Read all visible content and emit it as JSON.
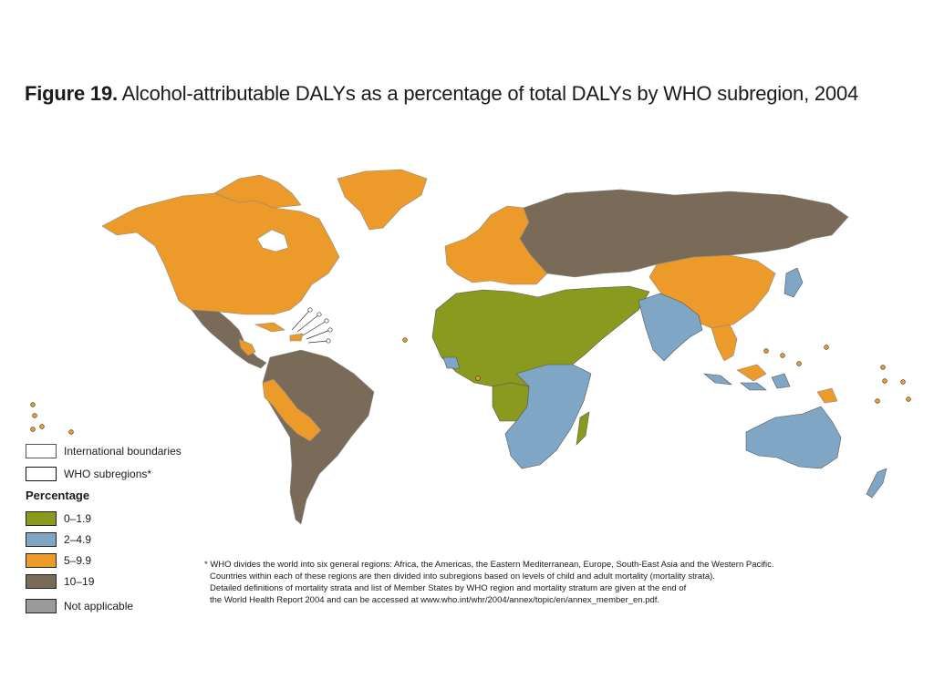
{
  "title": {
    "figure_label": "Figure 19.",
    "text": "Alcohol-attributable DALYs as a percentage of total DALYs by WHO subregion, 2004"
  },
  "legend": {
    "boundary_items": [
      {
        "label": "International boundaries"
      },
      {
        "label": "WHO subregions*"
      }
    ],
    "heading": "Percentage",
    "categories": [
      {
        "label": "0–1.9",
        "color": "#8a9a1e"
      },
      {
        "label": "2–4.9",
        "color": "#7fa6c4"
      },
      {
        "label": "5–9.9",
        "color": "#ec9a2a"
      },
      {
        "label": "10–19",
        "color": "#7a6a58"
      },
      {
        "label": "Not applicable",
        "color": "#9a9a9a"
      }
    ]
  },
  "footnote": {
    "lines": [
      "* WHO divides the world into six general regions: Africa, the Americas, the Eastern Mediterranean, Europe, South-East Asia and the Western Pacific.",
      "Countries within each of these regions are then divided into subregions based on levels of child and adult mortality (mortality strata).",
      "Detailed definitions of mortality strata and list of Member States by WHO region and mortality stratum are given at the end of",
      "the World Health Report 2004 and can be accessed at www.who.int/whr/2004/annex/topic/en/annex_member_en.pdf."
    ]
  },
  "map": {
    "region_categories": {
      "north-america": "5–9.9",
      "greenland": "5–9.9",
      "mexico-central-america": "10–19",
      "caribbean": "5–9.9",
      "south-america-east": "10–19",
      "south-america-west": "5–9.9",
      "western-europe": "5–9.9",
      "russia-eastern-europe": "10–19",
      "north-africa-middle-east": "0–1.9",
      "sub-saharan-africa-east-south": "2–4.9",
      "central-africa": "0–1.9",
      "south-asia": "2–4.9",
      "china": "5–9.9",
      "south-east-asia": "5–9.9",
      "australia-new-zealand": "2–4.9",
      "japan": "2–4.9"
    }
  }
}
